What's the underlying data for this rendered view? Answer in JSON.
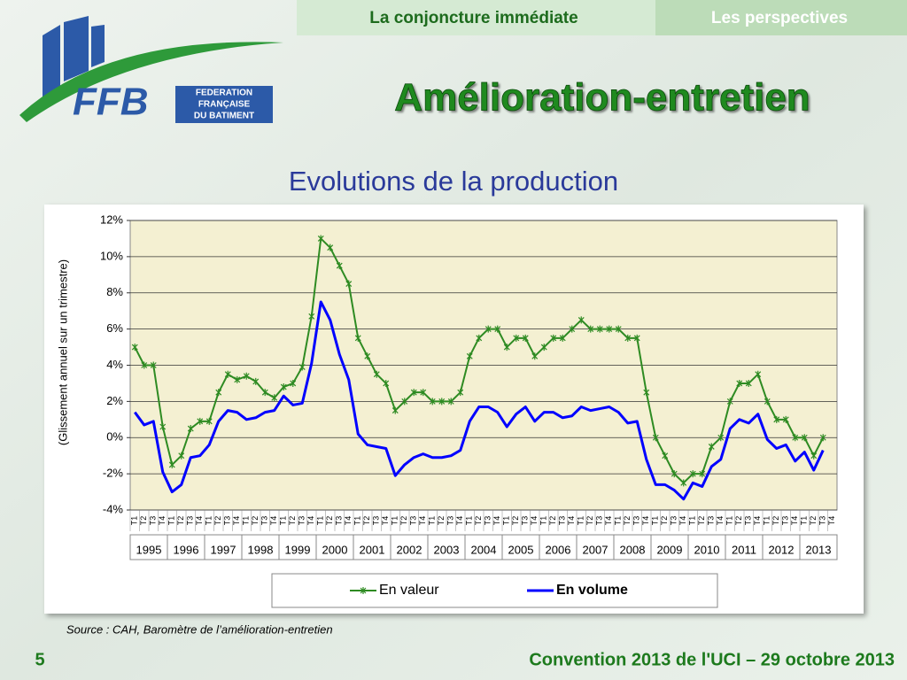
{
  "slide": {
    "tabs": [
      "La conjoncture immédiate",
      "Les perspectives"
    ],
    "logo": {
      "abbr": "FFB",
      "name": [
        "FEDERATION",
        "FRANÇAISE",
        "DU BATIMENT"
      ]
    },
    "title": "Amélioration-entretien",
    "page_number": "5",
    "footer": "Convention 2013 de l'UCI – 29 octobre 2013"
  },
  "chart_data": {
    "type": "line",
    "title": "Evolutions de la production",
    "y_label": "(Glissement annuel sur un trimestre)",
    "source": "Source : CAH, Baromètre de l’amélioration-entretien",
    "categories": [
      "T1",
      "T2",
      "T3",
      "T4",
      "T1",
      "T2",
      "T3",
      "T4",
      "T1",
      "T2",
      "T3",
      "T4",
      "T1",
      "T2",
      "T3",
      "T4",
      "T1",
      "T2",
      "T3",
      "T4",
      "T1",
      "T2",
      "T3",
      "T4",
      "T1",
      "T2",
      "T3",
      "T4",
      "T1",
      "T2",
      "T3",
      "T4",
      "T1",
      "T2",
      "T3",
      "T4",
      "T1",
      "T2",
      "T3",
      "T4",
      "T1",
      "T2",
      "T3",
      "T4",
      "T1",
      "T2",
      "T3",
      "T4",
      "T1",
      "T2",
      "T3",
      "T4",
      "T1",
      "T2",
      "T3",
      "T4",
      "T1",
      "T2",
      "T3",
      "T4",
      "T1",
      "T2",
      "T3",
      "T4",
      "T1",
      "T2",
      "T3",
      "T4",
      "T1",
      "T2",
      "T3",
      "T4",
      "T1",
      "T2",
      "T3",
      "T4"
    ],
    "year_labels": [
      "1995",
      "1996",
      "1997",
      "1998",
      "1999",
      "2000",
      "2001",
      "2002",
      "2003",
      "2004",
      "2005",
      "2006",
      "2007",
      "2008",
      "2009",
      "2010",
      "2011",
      "2012",
      "2013"
    ],
    "series": [
      {
        "name": "En valeur",
        "color": "#2e8b22",
        "marker": "x",
        "values": [
          5.0,
          4.0,
          4.0,
          0.6,
          -1.5,
          -1.0,
          0.5,
          0.9,
          0.9,
          2.5,
          3.5,
          3.2,
          3.4,
          3.1,
          2.5,
          2.2,
          2.8,
          3.0,
          3.9,
          6.7,
          11.0,
          10.5,
          9.5,
          8.5,
          5.5,
          4.5,
          3.5,
          3.0,
          1.5,
          2.0,
          2.5,
          2.5,
          2.0,
          2.0,
          2.0,
          2.5,
          4.5,
          5.5,
          6.0,
          6.0,
          5.0,
          5.5,
          5.5,
          4.5,
          5.0,
          5.5,
          5.5,
          6.0,
          6.5,
          6.0,
          6.0,
          6.0,
          6.0,
          5.5,
          5.5,
          2.5,
          0,
          -1.0,
          -2.0,
          -2.5,
          -2.0,
          -2.0,
          -0.5,
          0,
          2.0,
          3.0,
          3.0,
          3.5,
          2.0,
          1.0,
          1.0,
          0,
          0,
          -1.0,
          0,
          null
        ]
      },
      {
        "name": "En volume",
        "color": "#0000ff",
        "values": [
          1.4,
          0.7,
          0.9,
          -1.9,
          -3.0,
          -2.6,
          -1.1,
          -1.0,
          -0.4,
          0.9,
          1.5,
          1.4,
          1.0,
          1.1,
          1.4,
          1.5,
          2.3,
          1.8,
          1.9,
          4.1,
          7.5,
          6.5,
          4.6,
          3.2,
          0.2,
          -0.4,
          -0.5,
          -0.6,
          -2.1,
          -1.5,
          -1.1,
          -0.9,
          -1.1,
          -1.1,
          -1.0,
          -0.7,
          0.9,
          1.7,
          1.7,
          1.4,
          0.6,
          1.3,
          1.7,
          0.9,
          1.4,
          1.4,
          1.1,
          1.2,
          1.7,
          1.5,
          1.6,
          1.7,
          1.4,
          0.8,
          0.9,
          -1.2,
          -2.6,
          -2.6,
          -2.9,
          -3.4,
          -2.5,
          -2.7,
          -1.6,
          -1.2,
          0.5,
          1.0,
          0.8,
          1.3,
          -0.1,
          -0.6,
          -0.4,
          -1.3,
          -0.8,
          -1.8,
          -0.7,
          null
        ]
      }
    ],
    "ylim": [
      -4,
      12
    ],
    "yticks": [
      {
        "value": -4,
        "label": "-4%"
      },
      {
        "value": -2,
        "label": "-2%"
      },
      {
        "value": 0,
        "label": "0%"
      },
      {
        "value": 2,
        "label": "2%"
      },
      {
        "value": 4,
        "label": "4%"
      },
      {
        "value": 6,
        "label": "6%"
      },
      {
        "value": 8,
        "label": "8%"
      },
      {
        "value": 10,
        "label": "10%"
      },
      {
        "value": 12,
        "label": "12%"
      }
    ],
    "grid": true
  }
}
